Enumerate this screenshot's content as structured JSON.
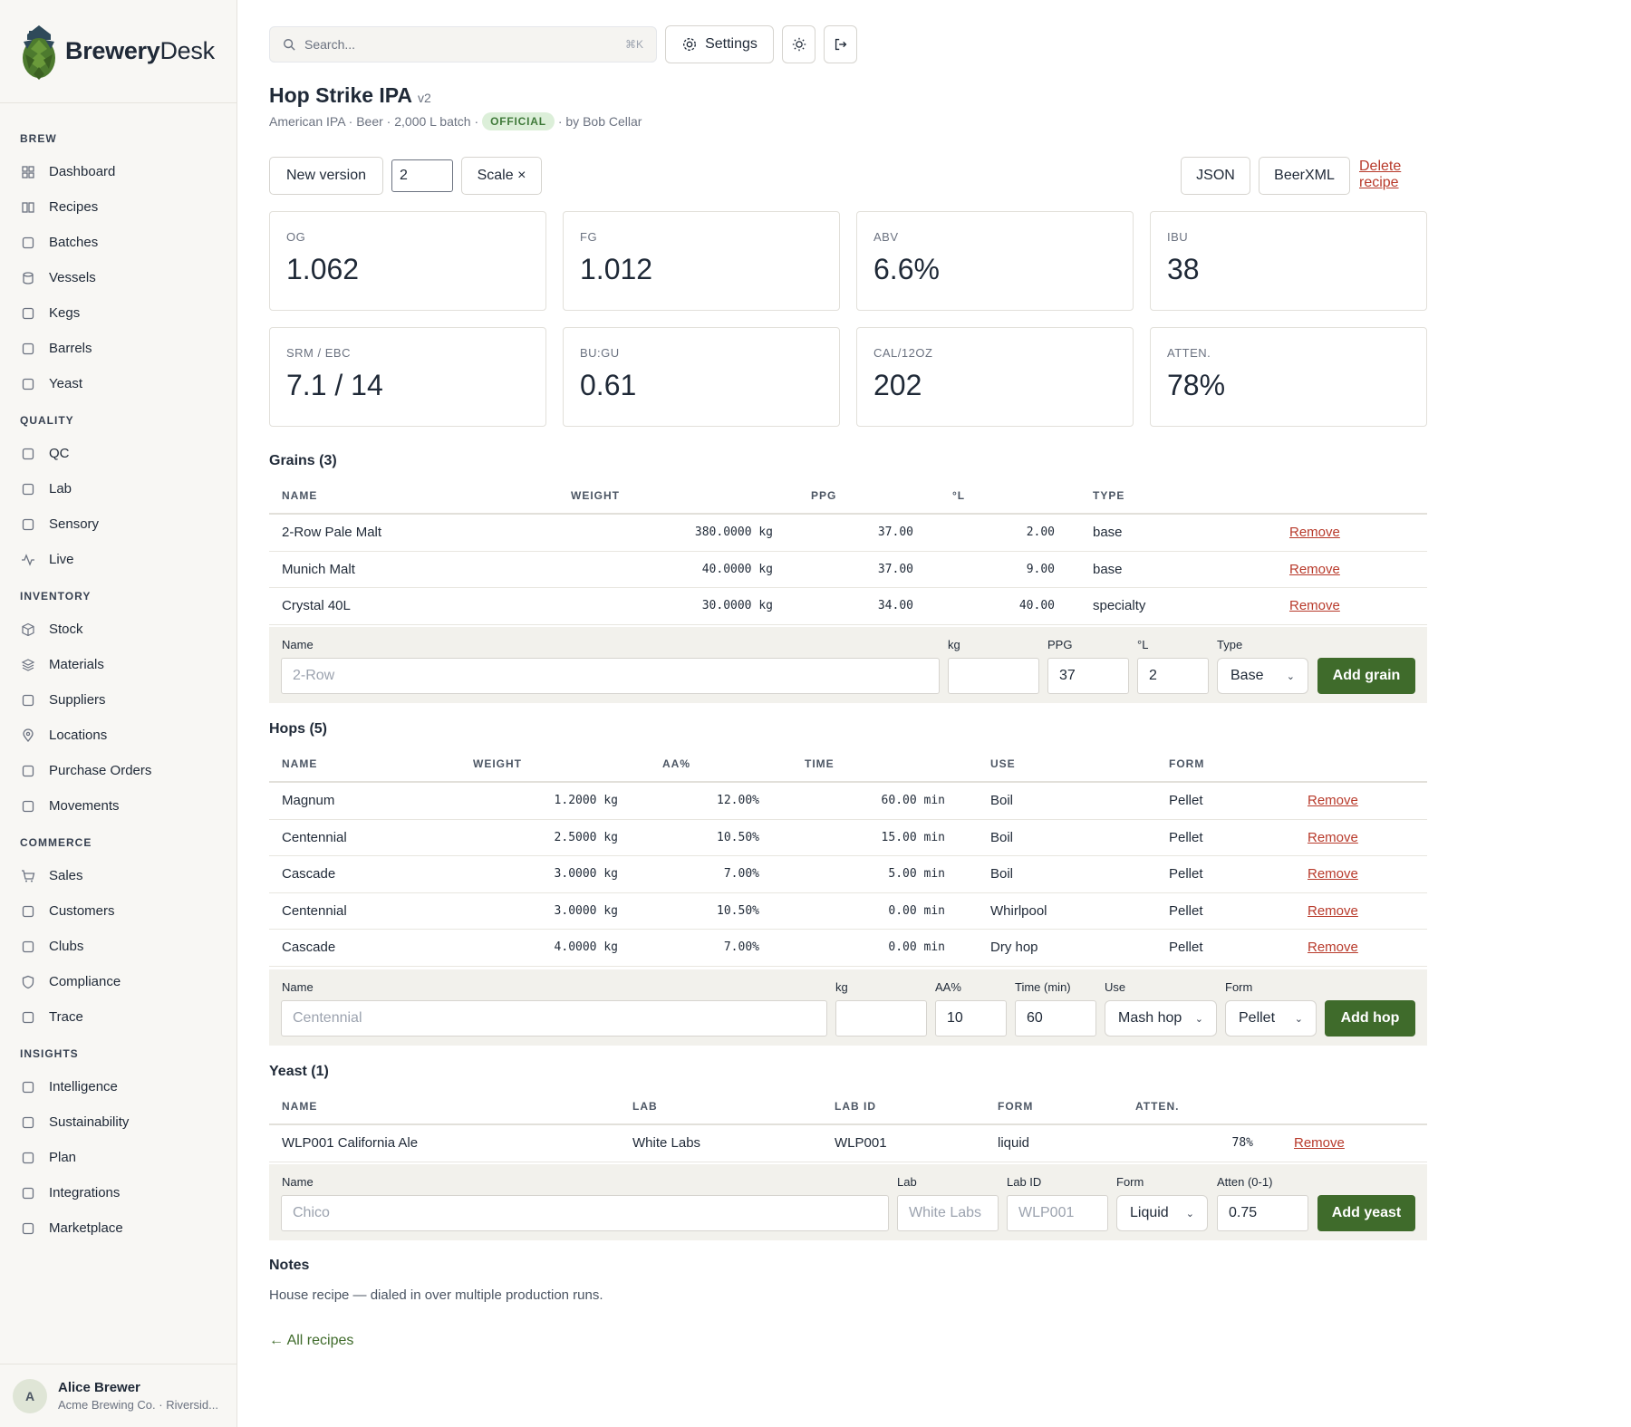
{
  "brand": {
    "name_bold": "Brewery",
    "name_light": "Desk"
  },
  "nav": [
    {
      "section": "BREW",
      "items": [
        {
          "label": "Dashboard",
          "icon": "grid-icon"
        },
        {
          "label": "Recipes",
          "icon": "book-icon"
        },
        {
          "label": "Batches",
          "icon": "beaker-icon"
        },
        {
          "label": "Vessels",
          "icon": "cylinder-icon"
        },
        {
          "label": "Kegs",
          "icon": "keg-icon"
        },
        {
          "label": "Barrels",
          "icon": "barrel-icon"
        },
        {
          "label": "Yeast",
          "icon": "yeast-icon"
        }
      ]
    },
    {
      "section": "QUALITY",
      "items": [
        {
          "label": "QC",
          "icon": "clipboard-check-icon"
        },
        {
          "label": "Lab",
          "icon": "flask-icon"
        },
        {
          "label": "Sensory",
          "icon": "wine-glass-icon"
        },
        {
          "label": "Live",
          "icon": "activity-icon"
        }
      ]
    },
    {
      "section": "INVENTORY",
      "items": [
        {
          "label": "Stock",
          "icon": "box-icon"
        },
        {
          "label": "Materials",
          "icon": "layers-icon"
        },
        {
          "label": "Suppliers",
          "icon": "truck-icon"
        },
        {
          "label": "Locations",
          "icon": "map-pin-icon"
        },
        {
          "label": "Purchase Orders",
          "icon": "file-icon"
        },
        {
          "label": "Movements",
          "icon": "arrows-icon"
        }
      ]
    },
    {
      "section": "COMMERCE",
      "items": [
        {
          "label": "Sales",
          "icon": "cart-icon"
        },
        {
          "label": "Customers",
          "icon": "users-icon"
        },
        {
          "label": "Clubs",
          "icon": "group-icon"
        },
        {
          "label": "Compliance",
          "icon": "shield-icon"
        },
        {
          "label": "Trace",
          "icon": "route-icon"
        }
      ]
    },
    {
      "section": "INSIGHTS",
      "items": [
        {
          "label": "Intelligence",
          "icon": "sparkles-icon"
        },
        {
          "label": "Sustainability",
          "icon": "leaf-icon"
        },
        {
          "label": "Plan",
          "icon": "calendar-icon"
        },
        {
          "label": "Integrations",
          "icon": "plug-icon"
        },
        {
          "label": "Marketplace",
          "icon": "shopping-bag-icon"
        }
      ]
    }
  ],
  "user": {
    "initial": "A",
    "name": "Alice Brewer",
    "org": "Acme Brewing Co. · Riversid..."
  },
  "topbar": {
    "search_placeholder": "Search...",
    "search_shortcut": "⌘K",
    "settings_label": "Settings"
  },
  "recipe": {
    "title": "Hop Strike IPA",
    "version": "v2",
    "meta_prefix": "American IPA · Beer · 2,000 L batch ·",
    "badge": "OFFICIAL",
    "meta_suffix": "· by Bob Cellar"
  },
  "actions": {
    "new_version": "New version",
    "scale_value": "2",
    "scale": "Scale ×",
    "json": "JSON",
    "beerxml": "BeerXML",
    "delete": "Delete recipe"
  },
  "stats": [
    {
      "label": "OG",
      "value": "1.062"
    },
    {
      "label": "FG",
      "value": "1.012"
    },
    {
      "label": "ABV",
      "value": "6.6%"
    },
    {
      "label": "IBU",
      "value": "38"
    },
    {
      "label": "SRM / EBC",
      "value": "7.1 / 14"
    },
    {
      "label": "BU:GU",
      "value": "0.61"
    },
    {
      "label": "CAL/12OZ",
      "value": "202"
    },
    {
      "label": "ATTEN.",
      "value": "78%"
    }
  ],
  "grains": {
    "title": "Grains (3)",
    "headers": [
      "NAME",
      "WEIGHT",
      "PPG",
      "°L",
      "TYPE"
    ],
    "rows": [
      {
        "name": "2-Row Pale Malt",
        "weight": "380.0000 kg",
        "ppg": "37.00",
        "lovibond": "2.00",
        "type": "base"
      },
      {
        "name": "Munich Malt",
        "weight": "40.0000 kg",
        "ppg": "37.00",
        "lovibond": "9.00",
        "type": "base"
      },
      {
        "name": "Crystal 40L",
        "weight": "30.0000 kg",
        "ppg": "34.00",
        "lovibond": "40.00",
        "type": "specialty"
      }
    ],
    "remove": "Remove",
    "form": {
      "name_label": "Name",
      "name_placeholder": "2-Row",
      "kg_label": "kg",
      "ppg_label": "PPG",
      "ppg_value": "37",
      "l_label": "°L",
      "l_value": "2",
      "type_label": "Type",
      "type_value": "Base",
      "add": "Add grain"
    }
  },
  "hops": {
    "title": "Hops (5)",
    "headers": [
      "NAME",
      "WEIGHT",
      "AA%",
      "TIME",
      "USE",
      "FORM"
    ],
    "rows": [
      {
        "name": "Magnum",
        "weight": "1.2000 kg",
        "aa": "12.00%",
        "time": "60.00 min",
        "use": "Boil",
        "form": "Pellet"
      },
      {
        "name": "Centennial",
        "weight": "2.5000 kg",
        "aa": "10.50%",
        "time": "15.00 min",
        "use": "Boil",
        "form": "Pellet"
      },
      {
        "name": "Cascade",
        "weight": "3.0000 kg",
        "aa": "7.00%",
        "time": "5.00 min",
        "use": "Boil",
        "form": "Pellet"
      },
      {
        "name": "Centennial",
        "weight": "3.0000 kg",
        "aa": "10.50%",
        "time": "0.00 min",
        "use": "Whirlpool",
        "form": "Pellet"
      },
      {
        "name": "Cascade",
        "weight": "4.0000 kg",
        "aa": "7.00%",
        "time": "0.00 min",
        "use": "Dry hop",
        "form": "Pellet"
      }
    ],
    "remove": "Remove",
    "form": {
      "name_label": "Name",
      "name_placeholder": "Centennial",
      "kg_label": "kg",
      "aa_label": "AA%",
      "aa_value": "10",
      "time_label": "Time (min)",
      "time_value": "60",
      "use_label": "Use",
      "use_value": "Mash hop",
      "form_label": "Form",
      "form_value": "Pellet",
      "add": "Add hop"
    }
  },
  "yeast": {
    "title": "Yeast (1)",
    "headers": [
      "NAME",
      "LAB",
      "LAB ID",
      "FORM",
      "ATTEN."
    ],
    "rows": [
      {
        "name": "WLP001 California Ale",
        "lab": "White Labs",
        "lab_id": "WLP001",
        "form": "liquid",
        "atten": "78%"
      }
    ],
    "remove": "Remove",
    "form": {
      "name_label": "Name",
      "name_placeholder": "Chico",
      "lab_label": "Lab",
      "lab_placeholder": "White Labs",
      "labid_label": "Lab ID",
      "labid_placeholder": "WLP001",
      "form_label": "Form",
      "form_value": "Liquid",
      "atten_label": "Atten (0-1)",
      "atten_value": "0.75",
      "add": "Add yeast"
    }
  },
  "notes": {
    "title": "Notes",
    "text": "House recipe — dialed in over multiple production runs."
  },
  "back": "← All recipes"
}
